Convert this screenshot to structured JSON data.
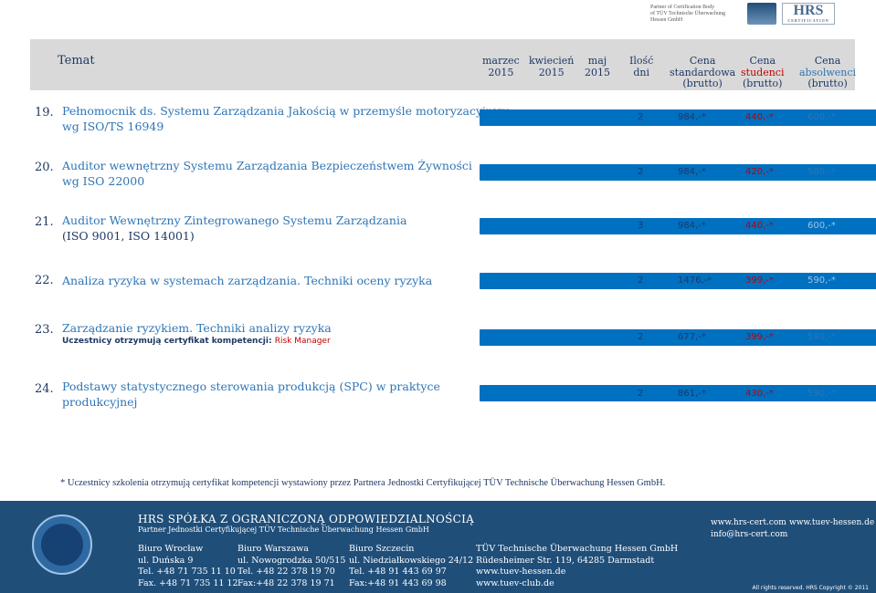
{
  "logo": {
    "text_lines": [
      "Partner of Certification Body",
      "of TÜV Technische Überwachung",
      "Hessen GmbH"
    ],
    "hrs_name": "HRS",
    "hrs_sub": "CERTIFICATION"
  },
  "header": {
    "temat": "Temat",
    "col1": [
      "marzec",
      "2015"
    ],
    "col2": [
      "kwiecień",
      "2015"
    ],
    "col3": [
      "maj",
      "2015"
    ],
    "col4": [
      "Ilość",
      "dni"
    ],
    "col5": [
      "Cena",
      "standardowa",
      "(brutto)"
    ],
    "col6": [
      "Cena",
      "studenci",
      "(brutto)"
    ],
    "col7": [
      "Cena",
      "absolwenci",
      "(brutto)"
    ]
  },
  "rows": [
    {
      "num": "19.",
      "title1": "Pełnomocnik ds. Systemu Zarządzania Jakością w przemyśle motoryzacyjnym",
      "title2": "wg ISO/TS 16949",
      "days": "2",
      "std": "984,-*",
      "stud": "440,-*",
      "abs": "600,-*"
    },
    {
      "num": "20.",
      "title1": "Auditor wewnętrzny Systemu Zarządzania Bezpieczeństwem Żywności",
      "title2": "wg ISO 22000",
      "days": "2",
      "std": "984,-*",
      "stud": "420,-*",
      "abs": "580,-*"
    },
    {
      "num": "21.",
      "title1": "Auditor Wewnętrzny Zintegrowanego Systemu Zarządzania",
      "title2": "(ISO 9001, ISO 14001)",
      "days": "3",
      "std": "984,-*",
      "stud": "440,-*",
      "abs": "600,-*"
    },
    {
      "num": "22.",
      "title1": "Analiza ryzyka w systemach zarządzania. Techniki oceny ryzyka",
      "days": "2",
      "std": "1476,-*",
      "stud": "399,-*",
      "abs": "590,-*"
    },
    {
      "num": "23.",
      "title1": "Zarządzanie ryzykiem. Techniki analizy ryzyka",
      "sub_prefix": "Uczestnicy otrzymują certyfikat kompetencji: ",
      "sub_red": "Risk Manager",
      "days": "2",
      "std": "677,-*",
      "stud": "399,-*",
      "abs": "590,-*"
    },
    {
      "num": "24.",
      "title1": "Podstawy statystycznego sterowania produkcją (SPC) w praktyce",
      "title2": "produkcyjnej",
      "days": "2",
      "std": "861,-*",
      "stud": "430,-*",
      "abs": "590,-*"
    }
  ],
  "footnote": "* Uczestnicy szkolenia otrzymują certyfikat kompetencji  wystawiony przez Partnera Jednostki Certyfikującej TÜV Technische Überwachung Hessen GmbH.",
  "footer": {
    "company": "HRS SPÓŁKA Z OGRANICZONĄ ODPOWIEDZIALNOŚCIĄ",
    "subtitle": "Partner Jednostki Certyfikującej TÜV Technische Überwachung Hessen GmbH",
    "wroclaw": [
      "Biuro Wrocław",
      "ul. Duńska 9",
      "Tel. +48 71 735 11 10",
      "Fax. +48 71 735  11 12"
    ],
    "warszawa": [
      "Biuro Warszawa",
      "ul. Nowogrodzka 50/515",
      "Tel. +48 22 378 19 70",
      "Fax:+48 22 378 19 71"
    ],
    "szczecin": [
      "Biuro Szczecin",
      "ul. Niedziałkowskiego 24/12",
      "Tel. +48 91 443 69 97",
      "Fax:+48 91 443 69 98"
    ],
    "tuv": [
      "TÜV Technische Überwachung Hessen GmbH",
      "Rüdesheimer Str. 119, 64285 Darmstadt",
      "www.tuev-hessen.de",
      "www.tuev-club.de"
    ],
    "web1": "www.hrs-cert.com",
    "email": "info@hrs-cert.com",
    "web2": "www.tuev-hessen.de",
    "copyright": "All rights reserved. HRS Copyright © 2011"
  }
}
